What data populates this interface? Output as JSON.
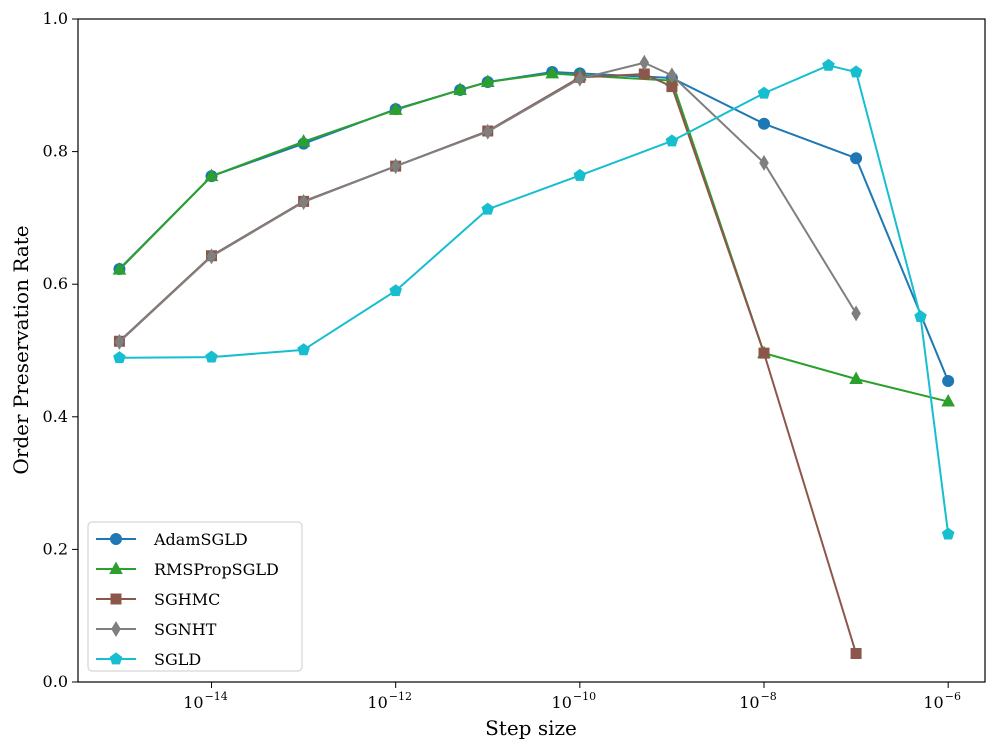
{
  "chart_data": {
    "type": "line",
    "xscale": "log",
    "xlabel": "Step size",
    "ylabel": "Order Preservation Rate",
    "xlim_log10": [
      -15.45,
      -5.6
    ],
    "ylim": [
      0.0,
      1.0
    ],
    "xticks": [
      {
        "exp": -14,
        "label": "10",
        "sup": "−14"
      },
      {
        "exp": -12,
        "label": "10",
        "sup": "−12"
      },
      {
        "exp": -10,
        "label": "10",
        "sup": "−10"
      },
      {
        "exp": -8,
        "label": "10",
        "sup": "−8"
      },
      {
        "exp": -6,
        "label": "10",
        "sup": "−6"
      }
    ],
    "yticks": [
      {
        "value": 0.0,
        "label": "0.0"
      },
      {
        "value": 0.2,
        "label": "0.2"
      },
      {
        "value": 0.4,
        "label": "0.4"
      },
      {
        "value": 0.6,
        "label": "0.6"
      },
      {
        "value": 0.8,
        "label": "0.8"
      },
      {
        "value": 1.0,
        "label": "1.0"
      }
    ],
    "legend_position": "lower-left",
    "series": [
      {
        "name": "AdamSGLD",
        "color": "#1f77b4",
        "marker": "circle",
        "x_log10": [
          -15,
          -14,
          -13,
          -12,
          -11.3,
          -11,
          -10.3,
          -10,
          -9,
          -8,
          -7,
          -6
        ],
        "y": [
          0.623,
          0.763,
          0.812,
          0.864,
          0.893,
          0.905,
          0.92,
          0.918,
          0.911,
          0.842,
          0.79,
          0.454
        ]
      },
      {
        "name": "RMSPropSGLD",
        "color": "#2ca02c",
        "marker": "triangle",
        "x_log10": [
          -15,
          -14,
          -13,
          -12,
          -11.3,
          -11,
          -10.3,
          -10,
          -9,
          -8,
          -7,
          -6
        ],
        "y": [
          0.622,
          0.763,
          0.815,
          0.863,
          0.893,
          0.905,
          0.918,
          0.915,
          0.907,
          0.496,
          0.457,
          0.423
        ]
      },
      {
        "name": "SGHMC",
        "color": "#8c564b",
        "marker": "square",
        "x_log10": [
          -15,
          -14,
          -13,
          -12,
          -11,
          -10,
          -9.3,
          -9,
          -8,
          -7
        ],
        "y": [
          0.514,
          0.643,
          0.725,
          0.778,
          0.831,
          0.912,
          0.917,
          0.898,
          0.496,
          0.043
        ]
      },
      {
        "name": "SGNHT",
        "color": "#7f7f7f",
        "marker": "diamond",
        "x_log10": [
          -15,
          -14,
          -13,
          -12,
          -11,
          -10,
          -9.3,
          -9,
          -8,
          -7
        ],
        "y": [
          0.513,
          0.642,
          0.724,
          0.778,
          0.83,
          0.91,
          0.934,
          0.915,
          0.783,
          0.556
        ]
      },
      {
        "name": "SGLD",
        "color": "#17becf",
        "marker": "pentagon",
        "x_log10": [
          -15,
          -14,
          -13,
          -12,
          -11,
          -10,
          -9,
          -8,
          -7.3,
          -7,
          -6.3,
          -6
        ],
        "y": [
          0.489,
          0.49,
          0.501,
          0.59,
          0.713,
          0.764,
          0.816,
          0.888,
          0.93,
          0.92,
          0.551,
          0.223
        ]
      }
    ]
  }
}
